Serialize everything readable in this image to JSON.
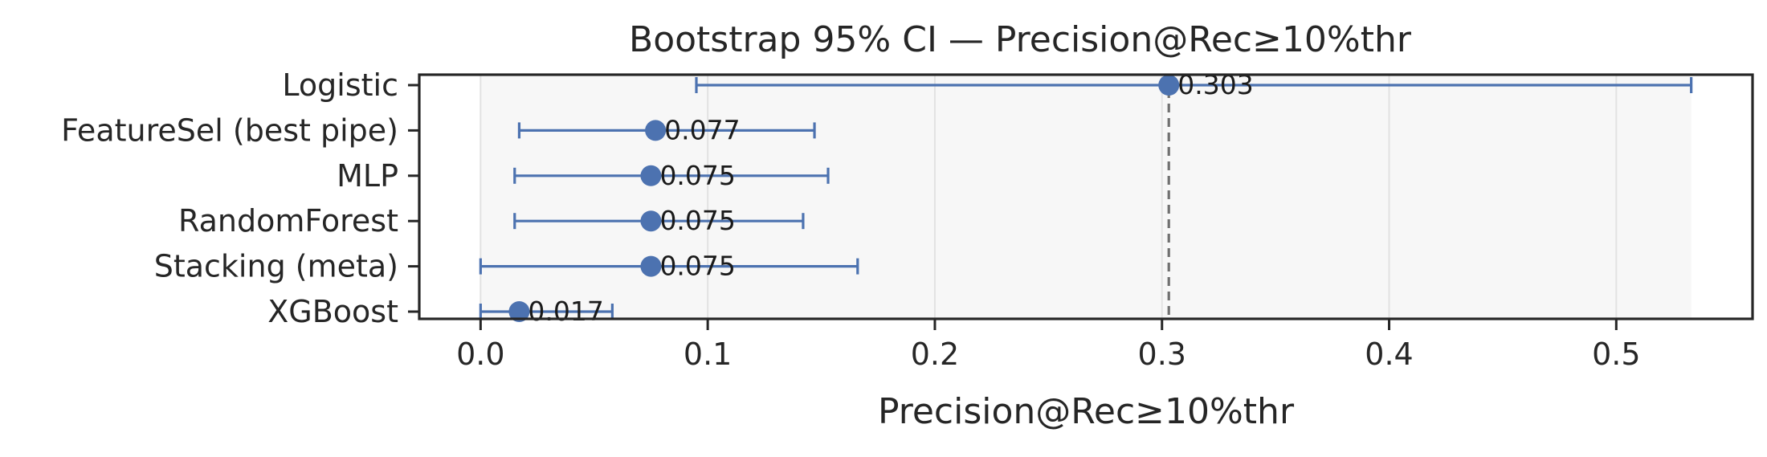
{
  "chart_data": {
    "type": "errorbar",
    "title": "Bootstrap 95% CI — Precision@Rec≥10%thr",
    "xlabel": "Precision@Rec≥10%thr",
    "ylabel": "",
    "xlim": [
      -0.027,
      0.56
    ],
    "xticks": [
      0.0,
      0.1,
      0.2,
      0.3,
      0.4,
      0.5
    ],
    "xtick_labels": [
      "0.0",
      "0.1",
      "0.2",
      "0.3",
      "0.4",
      "0.5"
    ],
    "grid": "vertical",
    "categories": [
      "Logistic",
      "FeatureSel (best pipe)",
      "MLP",
      "RandomForest",
      "Stacking (meta)",
      "XGBoost"
    ],
    "values": [
      0.303,
      0.077,
      0.075,
      0.075,
      0.075,
      0.017
    ],
    "value_labels": [
      "0.303",
      "0.077",
      "0.075",
      "0.075",
      "0.075",
      "0.017"
    ],
    "ci_low": [
      0.095,
      0.017,
      0.015,
      0.015,
      0.0,
      0.0
    ],
    "ci_high": [
      0.533,
      0.147,
      0.153,
      0.142,
      0.166,
      0.058
    ],
    "reference_line": 0.303,
    "shaded_range": [
      0.0,
      0.533
    ],
    "colors": {
      "marker": "#4c72b0",
      "reference_line": "#707070",
      "shade": "#f7f7f7",
      "grid": "#e2e2e2",
      "axis": "#262626"
    }
  }
}
